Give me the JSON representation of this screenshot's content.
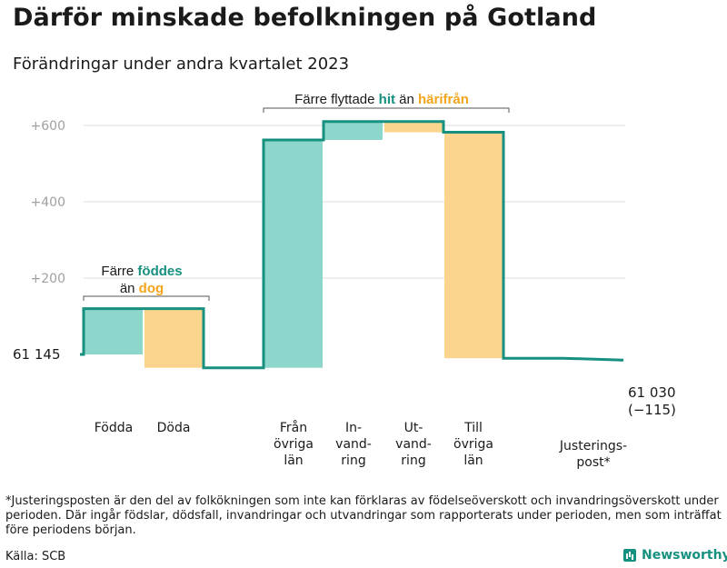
{
  "title": "Därför minskade befolkningen på Gotland",
  "subtitle": "Förändringar under andra kvartalet 2023",
  "footnote": "*Justeringsposten är den del av folkökningen som inte kan förklaras av födelseöverskott och invandringsöverskott under perioden. Där ingår födslar, dödsfall, invandringar och utvandringar som rapporterats under perioden, men som inträffat före periodens början.",
  "source": "Källa: SCB",
  "logo_text": "Newsworthy",
  "colors": {
    "teal": "#17907f",
    "teal_light": "#8dd6cb",
    "orange": "#f3a51c",
    "orange_light": "#fbd58d",
    "grid": "#dcdcdc",
    "bracket": "#555555"
  },
  "chart_data": {
    "type": "waterfall",
    "baseline": 0,
    "ylim": [
      -90,
      640
    ],
    "yticks": [
      200,
      400,
      600
    ],
    "ytick_labels": [
      "+200",
      "+400",
      "+600"
    ],
    "grid": true,
    "start_label": "61  145",
    "end_label": [
      "61 030",
      "(−115)"
    ],
    "steps": [
      {
        "category": [
          "Födda"
        ],
        "delta": 120,
        "kind": "in"
      },
      {
        "category": [
          "Döda"
        ],
        "delta": -155,
        "kind": "out"
      },
      {
        "category": [],
        "delta": 0,
        "kind": "gap"
      },
      {
        "category": [
          "Från",
          "övriga",
          "län"
        ],
        "delta": 597,
        "kind": "in"
      },
      {
        "category": [
          "In-",
          "vand-",
          "ring"
        ],
        "delta": 48,
        "kind": "in"
      },
      {
        "category": [
          "Ut-",
          "vand-",
          "ring"
        ],
        "delta": -28,
        "kind": "out"
      },
      {
        "category": [
          "Till",
          "övriga",
          "län"
        ],
        "delta": -592,
        "kind": "out"
      },
      {
        "category": [],
        "delta": 0,
        "kind": "gap"
      },
      {
        "category": [
          "Justerings-",
          "post*"
        ],
        "delta": -5,
        "kind": "adjust"
      }
    ],
    "annotations": [
      {
        "line1": "Färre ",
        "hl1": "föddes",
        "line2": "än ",
        "hl2": "dog"
      },
      {
        "line1": "Färre flyttade ",
        "hl1": "hit",
        "line2": " än ",
        "hl2": "härifrån"
      }
    ]
  }
}
